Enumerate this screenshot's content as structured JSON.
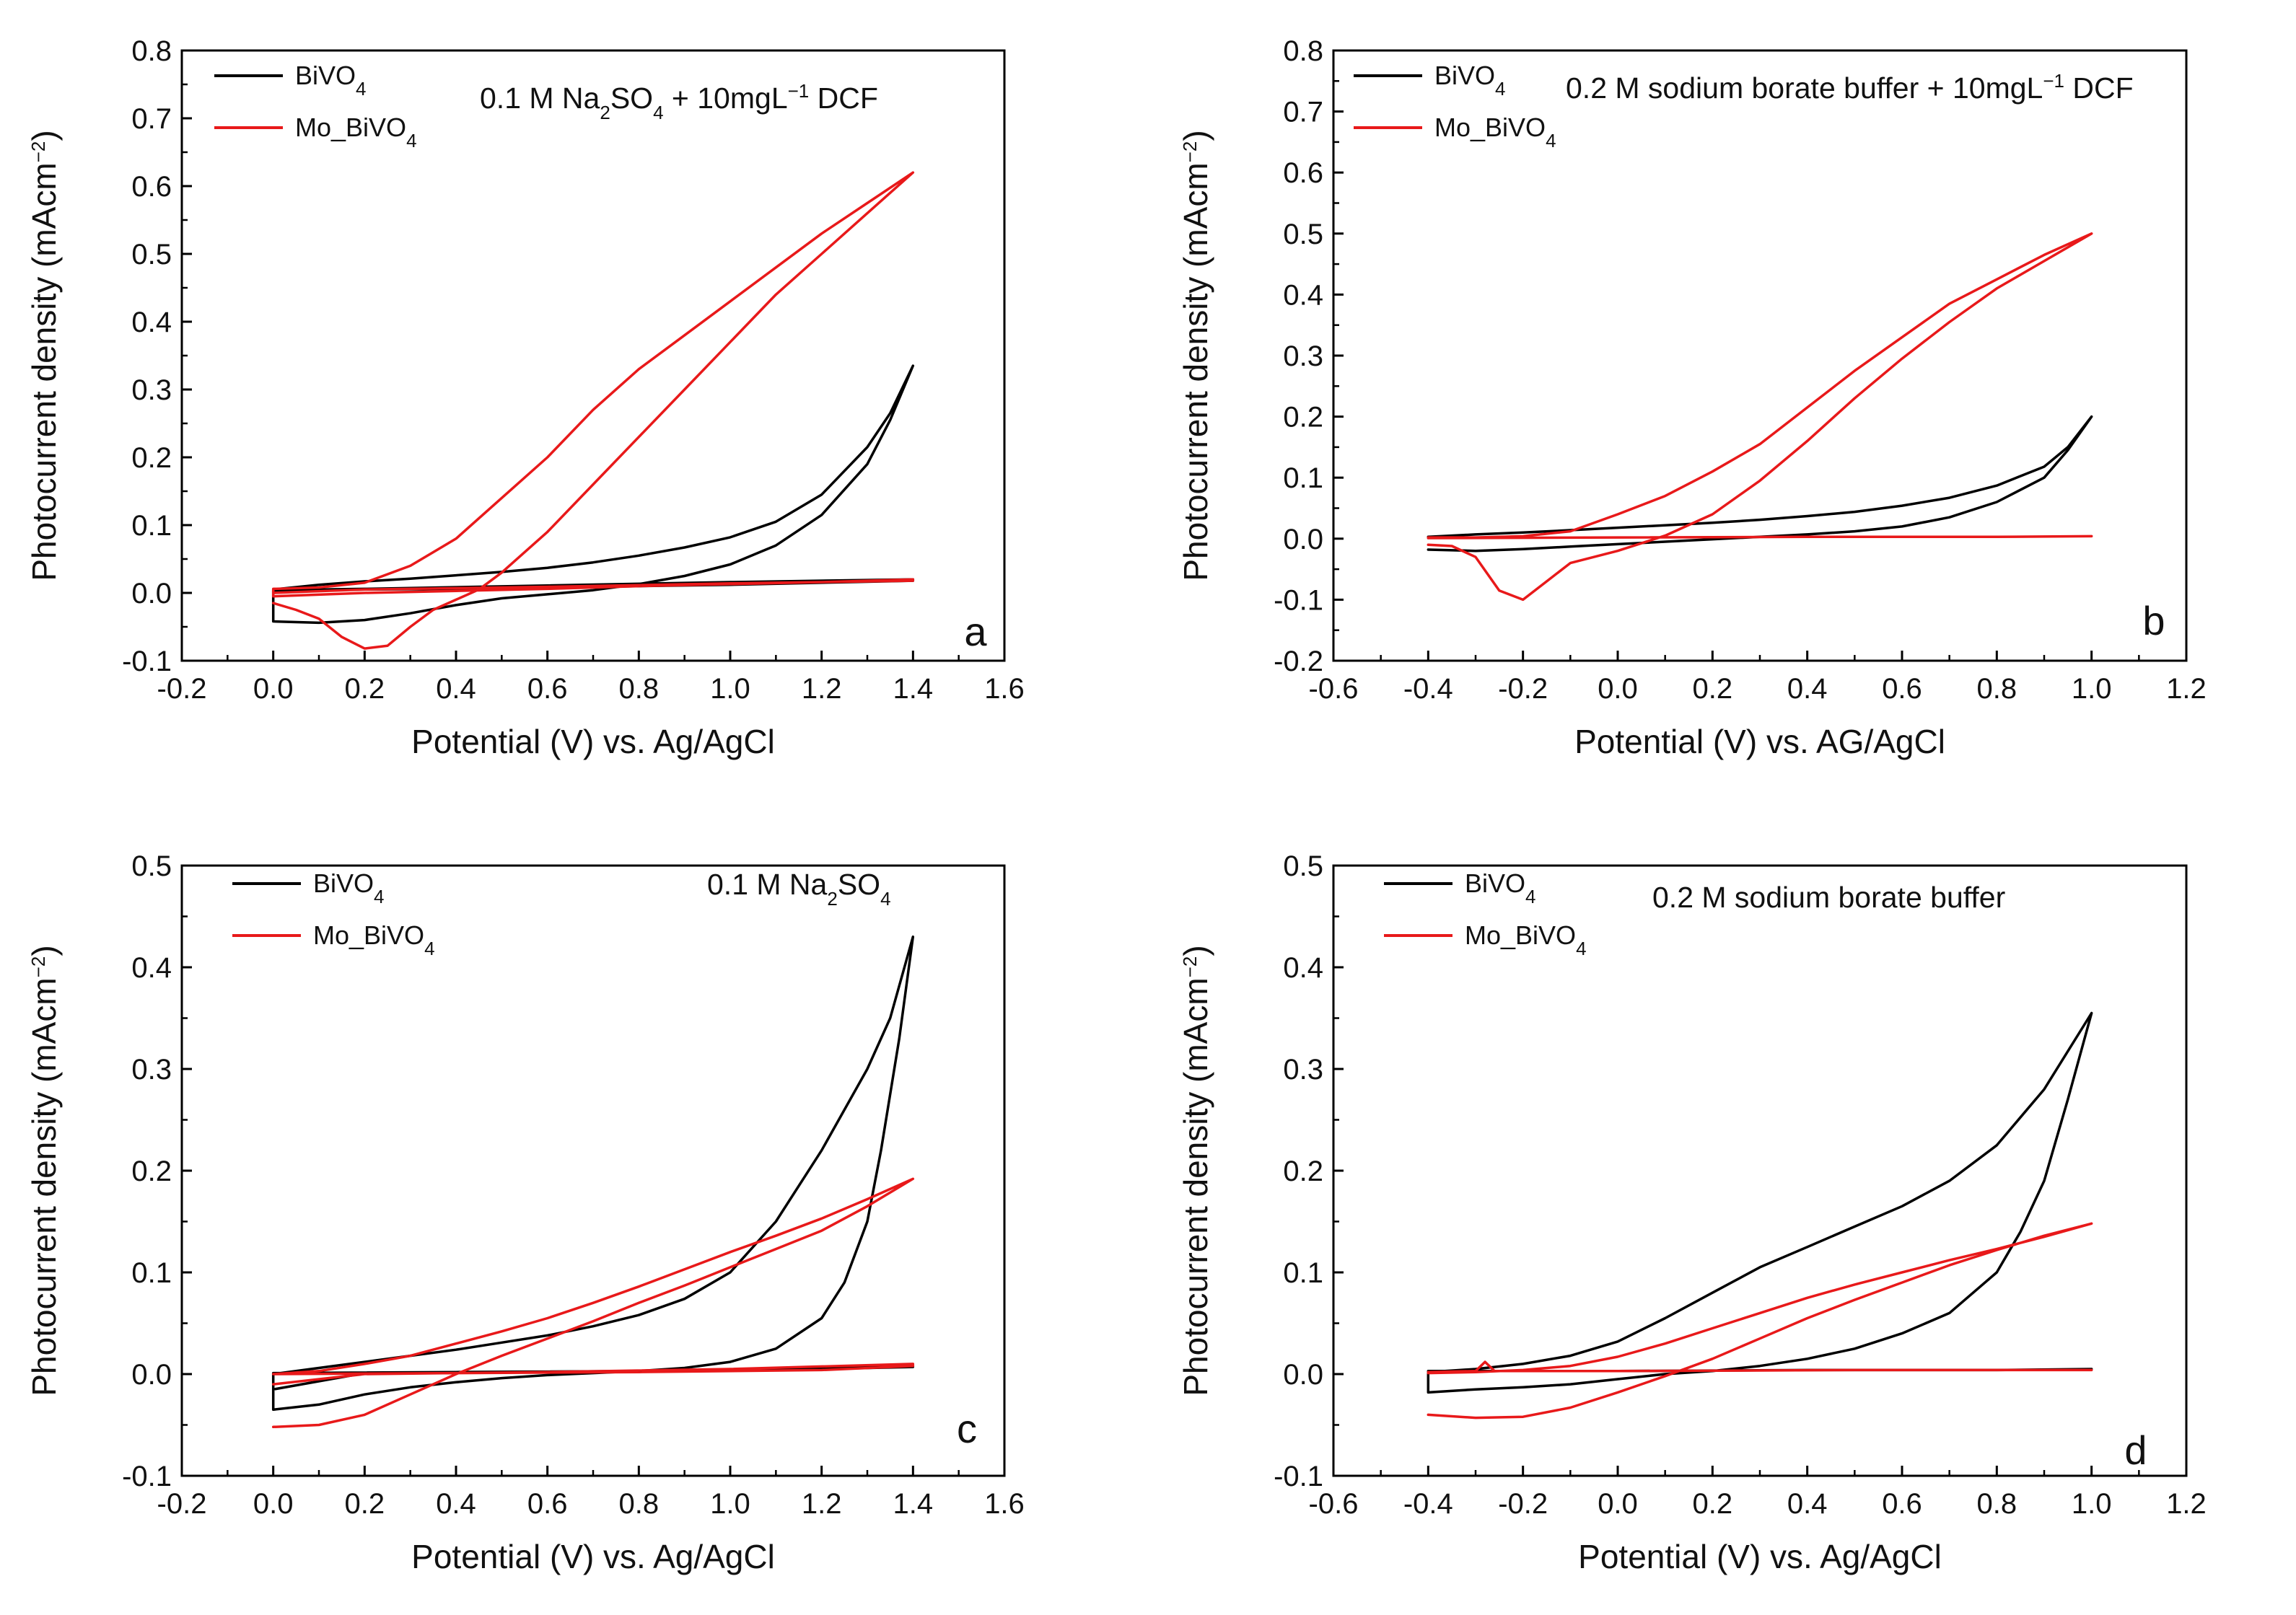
{
  "figure": {
    "chart_data": [
      {
        "type": "line",
        "panel_label": "a",
        "annotation": [
          {
            "t": "0.1 M Na"
          },
          {
            "t": "2",
            "sub": true
          },
          {
            "t": "SO"
          },
          {
            "t": "4",
            "sub": true
          },
          {
            "t": " + 10mgL"
          },
          {
            "t": "−1",
            "sup": true
          },
          {
            "t": " DCF"
          }
        ],
        "xlabel": "Potential (V) vs. Ag/AgCl",
        "ylabel": [
          {
            "t": "Photocurrent density (mAcm"
          },
          {
            "t": "−2",
            "sup": true
          },
          {
            "t": ")"
          }
        ],
        "xlim": [
          -0.2,
          1.6
        ],
        "ylim": [
          -0.1,
          0.8
        ],
        "xticks": [
          "-0.2",
          "0.0",
          "0.2",
          "0.4",
          "0.6",
          "0.8",
          "1.0",
          "1.2",
          "1.4",
          "1.6"
        ],
        "yticks": [
          "-0.1",
          "0.0",
          "0.1",
          "0.2",
          "0.3",
          "0.4",
          "0.5",
          "0.6",
          "0.7",
          "0.8"
        ],
        "grid": false,
        "legend": "top-left",
        "series": [
          {
            "name": [
              {
                "t": "BiVO"
              },
              {
                "t": "4",
                "sub": true
              }
            ],
            "color": "#000000",
            "x": [
              0.0,
              0.1,
              0.2,
              0.3,
              0.4,
              0.5,
              0.6,
              0.7,
              0.8,
              0.9,
              1.0,
              1.1,
              1.2,
              1.3,
              1.35,
              1.4,
              1.35,
              1.3,
              1.2,
              1.1,
              1.0,
              0.9,
              0.8,
              0.7,
              0.6,
              0.5,
              0.4,
              0.3,
              0.2,
              0.1,
              0.0,
              0.0,
              0.2,
              0.4,
              0.6,
              0.8,
              1.0,
              1.2,
              1.4,
              1.4,
              1.0,
              0.6,
              0.2,
              0.0
            ],
            "y": [
              0.005,
              0.012,
              0.017,
              0.021,
              0.026,
              0.031,
              0.037,
              0.045,
              0.055,
              0.067,
              0.082,
              0.105,
              0.145,
              0.215,
              0.265,
              0.335,
              0.255,
              0.19,
              0.115,
              0.07,
              0.042,
              0.025,
              0.013,
              0.004,
              -0.002,
              -0.008,
              -0.018,
              -0.03,
              -0.04,
              -0.044,
              -0.042,
              0.003,
              0.005,
              0.006,
              0.008,
              0.01,
              0.012,
              0.015,
              0.018,
              0.02,
              0.016,
              0.011,
              0.006,
              0.004
            ]
          },
          {
            "name": [
              {
                "t": "Mo_BiVO"
              },
              {
                "t": "4",
                "sub": true
              }
            ],
            "color": "#e8191a",
            "x": [
              0.0,
              0.05,
              0.1,
              0.15,
              0.2,
              0.25,
              0.3,
              0.35,
              0.4,
              0.45,
              0.5,
              0.6,
              0.7,
              0.8,
              0.9,
              1.0,
              1.1,
              1.2,
              1.3,
              1.4,
              1.3,
              1.2,
              1.1,
              1.0,
              0.9,
              0.8,
              0.7,
              0.6,
              0.5,
              0.4,
              0.3,
              0.2,
              0.1,
              0.0,
              0.0,
              0.2,
              0.4,
              0.6,
              0.8,
              1.0,
              1.2,
              1.4,
              1.4,
              1.0,
              0.6,
              0.2,
              0.0
            ],
            "y": [
              -0.015,
              -0.025,
              -0.038,
              -0.065,
              -0.082,
              -0.078,
              -0.05,
              -0.025,
              -0.01,
              0.005,
              0.03,
              0.09,
              0.16,
              0.23,
              0.3,
              0.37,
              0.44,
              0.5,
              0.56,
              0.62,
              0.575,
              0.53,
              0.48,
              0.43,
              0.38,
              0.33,
              0.27,
              0.2,
              0.14,
              0.08,
              0.04,
              0.015,
              0.008,
              0.006,
              -0.005,
              0.0,
              0.003,
              0.006,
              0.01,
              0.013,
              0.016,
              0.02,
              0.018,
              0.014,
              0.009,
              0.005,
              0.0
            ]
          }
        ]
      },
      {
        "type": "line",
        "panel_label": "b",
        "annotation": [
          {
            "t": "0.2 M sodium borate buffer + 10mgL"
          },
          {
            "t": "−1",
            "sup": true
          },
          {
            "t": " DCF"
          }
        ],
        "xlabel": "Potential (V) vs. AG/AgCl",
        "ylabel": [
          {
            "t": "Photocurrent density (mAcm"
          },
          {
            "t": "−2",
            "sup": true
          },
          {
            "t": ")"
          }
        ],
        "xlim": [
          -0.6,
          1.2
        ],
        "ylim": [
          -0.2,
          0.8
        ],
        "xticks": [
          "-0.6",
          "-0.4",
          "-0.2",
          "0.0",
          "0.2",
          "0.4",
          "0.6",
          "0.8",
          "1.0",
          "1.2"
        ],
        "yticks": [
          "-0.2",
          "-0.1",
          "0.0",
          "0.1",
          "0.2",
          "0.3",
          "0.4",
          "0.5",
          "0.6",
          "0.7",
          "0.8"
        ],
        "grid": false,
        "legend": "top-left",
        "series": [
          {
            "name": [
              {
                "t": "BiVO"
              },
              {
                "t": "4",
                "sub": true
              }
            ],
            "color": "#000000",
            "x": [
              -0.4,
              -0.3,
              -0.2,
              -0.1,
              0.0,
              0.1,
              0.2,
              0.3,
              0.4,
              0.5,
              0.6,
              0.7,
              0.8,
              0.9,
              0.95,
              1.0,
              0.95,
              0.9,
              0.8,
              0.7,
              0.6,
              0.5,
              0.4,
              0.3,
              0.2,
              0.1,
              0.0,
              -0.1,
              -0.2,
              -0.3,
              -0.4
            ],
            "y": [
              0.003,
              0.007,
              0.01,
              0.014,
              0.018,
              0.022,
              0.026,
              0.031,
              0.037,
              0.044,
              0.054,
              0.067,
              0.087,
              0.118,
              0.15,
              0.2,
              0.145,
              0.1,
              0.06,
              0.035,
              0.02,
              0.012,
              0.007,
              0.003,
              -0.001,
              -0.005,
              -0.009,
              -0.013,
              -0.017,
              -0.02,
              -0.018
            ]
          },
          {
            "name": [
              {
                "t": "Mo_BiVO"
              },
              {
                "t": "4",
                "sub": true
              }
            ],
            "color": "#e8191a",
            "x": [
              -0.4,
              -0.35,
              -0.3,
              -0.25,
              -0.2,
              -0.15,
              -0.1,
              0.0,
              0.1,
              0.2,
              0.3,
              0.4,
              0.5,
              0.6,
              0.7,
              0.8,
              0.9,
              1.0,
              0.9,
              0.8,
              0.7,
              0.6,
              0.5,
              0.4,
              0.3,
              0.2,
              0.1,
              0.0,
              -0.1,
              -0.2,
              -0.3,
              -0.4,
              -0.4,
              0.0,
              0.4,
              0.8,
              1.0
            ],
            "y": [
              -0.01,
              -0.012,
              -0.03,
              -0.085,
              -0.1,
              -0.07,
              -0.04,
              -0.02,
              0.005,
              0.04,
              0.095,
              0.16,
              0.23,
              0.295,
              0.355,
              0.41,
              0.455,
              0.5,
              0.465,
              0.425,
              0.385,
              0.33,
              0.275,
              0.215,
              0.155,
              0.11,
              0.07,
              0.04,
              0.012,
              0.004,
              0.002,
              0.002,
              0.001,
              0.002,
              0.003,
              0.003,
              0.004
            ]
          }
        ]
      },
      {
        "type": "line",
        "panel_label": "c",
        "annotation": [
          {
            "t": "0.1 M Na"
          },
          {
            "t": "2",
            "sub": true
          },
          {
            "t": "SO"
          },
          {
            "t": "4",
            "sub": true
          }
        ],
        "xlabel": "Potential (V) vs. Ag/AgCl",
        "ylabel": [
          {
            "t": "Photocurrent density (mAcm"
          },
          {
            "t": "−2",
            "sup": true
          },
          {
            "t": ")"
          }
        ],
        "xlim": [
          -0.2,
          1.6
        ],
        "ylim": [
          -0.1,
          0.5
        ],
        "xticks": [
          "-0.2",
          "0.0",
          "0.2",
          "0.4",
          "0.6",
          "0.8",
          "1.0",
          "1.2",
          "1.4",
          "1.6"
        ],
        "yticks": [
          "-0.1",
          "0.0",
          "0.1",
          "0.2",
          "0.3",
          "0.4",
          "0.5"
        ],
        "grid": false,
        "legend": "top-left",
        "series": [
          {
            "name": [
              {
                "t": "BiVO"
              },
              {
                "t": "4",
                "sub": true
              }
            ],
            "color": "#000000",
            "x": [
              0.0,
              0.1,
              0.2,
              0.3,
              0.4,
              0.5,
              0.6,
              0.7,
              0.8,
              0.9,
              1.0,
              1.1,
              1.2,
              1.3,
              1.35,
              1.4,
              1.37,
              1.33,
              1.3,
              1.25,
              1.2,
              1.1,
              1.0,
              0.9,
              0.8,
              0.7,
              0.6,
              0.5,
              0.4,
              0.3,
              0.2,
              0.1,
              0.0,
              0.0,
              0.4,
              0.8,
              1.2,
              1.4,
              1.4,
              1.0,
              0.6,
              0.2,
              0.0
            ],
            "y": [
              0.0,
              0.006,
              0.012,
              0.018,
              0.024,
              0.031,
              0.038,
              0.047,
              0.058,
              0.074,
              0.1,
              0.15,
              0.22,
              0.3,
              0.35,
              0.43,
              0.33,
              0.22,
              0.15,
              0.09,
              0.055,
              0.025,
              0.012,
              0.006,
              0.003,
              0.001,
              -0.001,
              -0.004,
              -0.008,
              -0.013,
              -0.02,
              -0.03,
              -0.035,
              0.001,
              0.002,
              0.003,
              0.005,
              0.007,
              0.008,
              0.004,
              0.002,
              0.001,
              -0.015
            ]
          },
          {
            "name": [
              {
                "t": "Mo_BiVO"
              },
              {
                "t": "4",
                "sub": true
              }
            ],
            "color": "#e8191a",
            "x": [
              0.0,
              0.1,
              0.2,
              0.3,
              0.4,
              0.5,
              0.6,
              0.7,
              0.8,
              0.9,
              1.0,
              1.1,
              1.2,
              1.3,
              1.4,
              1.3,
              1.2,
              1.1,
              1.0,
              0.9,
              0.8,
              0.7,
              0.6,
              0.5,
              0.4,
              0.3,
              0.2,
              0.1,
              0.0,
              0.0,
              0.4,
              0.8,
              1.2,
              1.4,
              1.4,
              1.0,
              0.6,
              0.2,
              0.0
            ],
            "y": [
              -0.052,
              -0.05,
              -0.04,
              -0.02,
              0.0,
              0.018,
              0.035,
              0.052,
              0.07,
              0.087,
              0.105,
              0.123,
              0.141,
              0.165,
              0.192,
              0.172,
              0.153,
              0.136,
              0.12,
              0.103,
              0.086,
              0.07,
              0.055,
              0.042,
              0.03,
              0.018,
              0.01,
              0.003,
              0.0,
              0.0,
              0.001,
              0.002,
              0.004,
              0.008,
              0.01,
              0.005,
              0.002,
              0.0,
              -0.01
            ]
          }
        ]
      },
      {
        "type": "line",
        "panel_label": "d",
        "annotation": [
          {
            "t": "0.2 M sodium borate buffer"
          }
        ],
        "xlabel": "Potential (V) vs. Ag/AgCl",
        "ylabel": [
          {
            "t": "Photocurrent density (mAcm"
          },
          {
            "t": "−2",
            "sup": true
          },
          {
            "t": ")"
          }
        ],
        "xlim": [
          -0.6,
          1.2
        ],
        "ylim": [
          -0.1,
          0.5
        ],
        "xticks": [
          "-0.6",
          "-0.4",
          "-0.2",
          "0.0",
          "0.2",
          "0.4",
          "0.6",
          "0.8",
          "1.0",
          "1.2"
        ],
        "yticks": [
          "-0.1",
          "0.0",
          "0.1",
          "0.2",
          "0.3",
          "0.4",
          "0.5"
        ],
        "grid": false,
        "legend": "top-left",
        "series": [
          {
            "name": [
              {
                "t": "BiVO"
              },
              {
                "t": "4",
                "sub": true
              }
            ],
            "color": "#000000",
            "x": [
              -0.4,
              -0.3,
              -0.2,
              -0.1,
              0.0,
              0.1,
              0.2,
              0.3,
              0.4,
              0.5,
              0.6,
              0.7,
              0.8,
              0.9,
              1.0,
              0.95,
              0.9,
              0.85,
              0.8,
              0.7,
              0.6,
              0.5,
              0.4,
              0.3,
              0.2,
              0.1,
              0.0,
              -0.1,
              -0.2,
              -0.3,
              -0.4,
              -0.4,
              0.0,
              0.4,
              0.8,
              1.0
            ],
            "y": [
              0.002,
              0.005,
              0.01,
              0.018,
              0.032,
              0.055,
              0.08,
              0.105,
              0.125,
              0.145,
              0.165,
              0.19,
              0.225,
              0.28,
              0.355,
              0.27,
              0.19,
              0.14,
              0.1,
              0.06,
              0.04,
              0.025,
              0.015,
              0.008,
              0.003,
              0.0,
              -0.005,
              -0.01,
              -0.013,
              -0.015,
              -0.018,
              0.003,
              0.003,
              0.004,
              0.004,
              0.005
            ]
          },
          {
            "name": [
              {
                "t": "Mo_BiVO"
              },
              {
                "t": "4",
                "sub": true
              }
            ],
            "color": "#e8191a",
            "x": [
              -0.4,
              -0.3,
              -0.2,
              -0.1,
              0.0,
              0.1,
              0.2,
              0.3,
              0.4,
              0.5,
              0.6,
              0.7,
              0.8,
              0.9,
              1.0,
              0.9,
              0.8,
              0.7,
              0.6,
              0.5,
              0.4,
              0.3,
              0.2,
              0.1,
              0.0,
              -0.1,
              -0.2,
              -0.3,
              -0.4,
              -0.4,
              -0.3,
              -0.28,
              -0.26,
              0.0,
              0.5,
              1.0
            ],
            "y": [
              -0.04,
              -0.043,
              -0.042,
              -0.033,
              -0.018,
              -0.002,
              0.015,
              0.035,
              0.055,
              0.073,
              0.09,
              0.107,
              0.122,
              0.136,
              0.148,
              0.135,
              0.123,
              0.112,
              0.1,
              0.088,
              0.075,
              0.06,
              0.045,
              0.03,
              0.017,
              0.008,
              0.004,
              0.002,
              0.001,
              0.002,
              0.003,
              0.012,
              0.003,
              0.003,
              0.004,
              0.004
            ]
          }
        ]
      }
    ]
  }
}
